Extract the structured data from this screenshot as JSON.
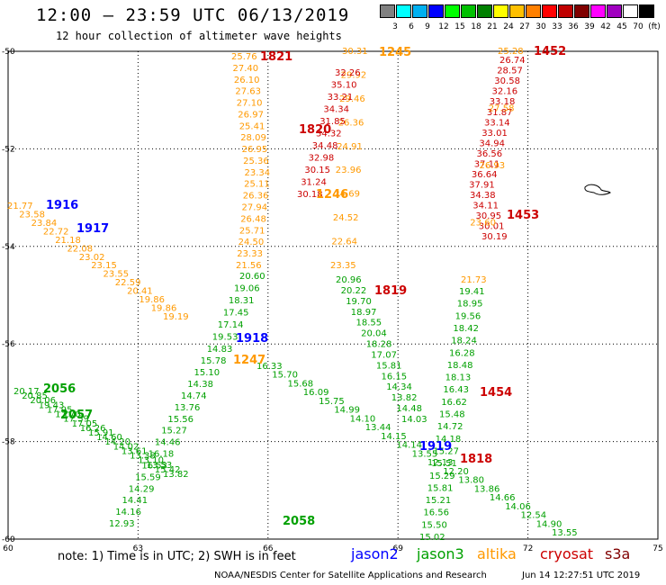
{
  "header": {
    "title": "12:00 – 23:59 UTC 06/13/2019",
    "subtitle": "12 hour collection of altimeter wave heights"
  },
  "legend": {
    "colors": [
      "#808080",
      "#00ffff",
      "#00b0f0",
      "#0000ff",
      "#00ff00",
      "#00c000",
      "#008000",
      "#ffff00",
      "#ffc000",
      "#ff8000",
      "#ff0000",
      "#c00000",
      "#800000",
      "#ff00ff",
      "#a000c0",
      "#ffffff",
      "#000000"
    ],
    "labels": [
      "3",
      "6",
      "9",
      "12",
      "15",
      "18",
      "21",
      "24",
      "27",
      "30",
      "33",
      "36",
      "39",
      "42",
      "45",
      "70",
      "(ft)"
    ]
  },
  "axes": {
    "x_ticks": [
      "60",
      "63",
      "66",
      "69",
      "72",
      "75"
    ],
    "y_ticks": [
      "-50",
      "-52",
      "-54",
      "-56",
      "-58",
      "-60"
    ]
  },
  "tracks": [
    {
      "sat": "altika",
      "labels": [
        "25.76",
        "27.40",
        "26.10",
        "27.63",
        "27.10",
        "26.97",
        "25.41",
        "28.09",
        "26.95",
        "25.36",
        "23.34",
        "25.11",
        "26.36",
        "27.94",
        "26.48",
        "25.71",
        "24.50",
        "23.33",
        "21.56"
      ]
    },
    {
      "sat": "altika",
      "labels": [
        "30.31",
        "29.92",
        "29.46",
        "26.36",
        "24.91",
        "23.96",
        "24.69",
        "24.52",
        "22.64",
        "23.35"
      ]
    },
    {
      "sat": "cryosat",
      "labels": [
        "32.26",
        "35.10",
        "33.21",
        "34.34",
        "31.85",
        "34.32",
        "34.48",
        "32.98",
        "30.15",
        "31.24",
        "30.18"
      ]
    },
    {
      "sat": "cryosat",
      "labels": [
        "26.74",
        "28.57",
        "30.58",
        "32.16",
        "33.18",
        "31.87",
        "33.14",
        "33.01",
        "34.94",
        "36.56",
        "37.11",
        "36.64",
        "37.91",
        "34.38",
        "34.11",
        "30.95",
        "30.01",
        "30.19"
      ]
    },
    {
      "sat": "altika",
      "labels": [
        "25.28",
        "27.58",
        "26.93",
        "23.60",
        "21.73"
      ]
    },
    {
      "sat": "jason3",
      "labels": [
        "20.60",
        "19.06",
        "18.31",
        "17.45",
        "17.14",
        "19.53",
        "14.83",
        "15.78",
        "15.10",
        "14.38",
        "14.74",
        "13.76",
        "15.56",
        "15.27",
        "14.46",
        "16.18",
        "16.53",
        "15.59",
        "14.29",
        "14.41",
        "14.16",
        "12.93"
      ]
    },
    {
      "sat": "jason3",
      "labels": [
        "20.96",
        "20.22",
        "19.70",
        "18.97",
        "18.55",
        "20.04",
        "18.28",
        "17.07",
        "15.81",
        "16.15",
        "14.34",
        "13.82",
        "14.48",
        "14.03"
      ]
    },
    {
      "sat": "jason3",
      "labels": [
        "19.41",
        "18.95",
        "19.56",
        "18.42",
        "18.24",
        "16.28",
        "18.48",
        "18.13",
        "16.43",
        "16.62",
        "15.48",
        "14.72",
        "14.18",
        "15.27",
        "15.51",
        "15.29",
        "15.81",
        "15.21",
        "16.56",
        "15.50",
        "15.02"
      ]
    },
    {
      "sat": "altika",
      "labels": [
        "21.77",
        "23.58",
        "23.84",
        "22.72",
        "21.18",
        "22.08",
        "23.02",
        "23.15",
        "23.55",
        "22.59",
        "20.41",
        "19.86",
        "19.86",
        "19.19"
      ]
    },
    {
      "sat": "jason3",
      "labels": [
        "16.33",
        "15.70",
        "15.68",
        "16.09",
        "15.75",
        "14.99",
        "14.10",
        "13.44",
        "14.15",
        "14.14",
        "13.55",
        "12.13",
        "12.20",
        "13.80",
        "13.86",
        "14.66",
        "14.06",
        "12.54",
        "14.90",
        "13.55"
      ]
    },
    {
      "sat": "jason3",
      "labels": [
        "20.17",
        "20.85",
        "20.06",
        "19.43",
        "17.95",
        "17.70",
        "17.59",
        "17.05",
        "16.26",
        "15.91",
        "14.60",
        "14.20",
        "14.02",
        "13.61",
        "13.38",
        "13.10",
        "13.53",
        "15.42",
        "13.82"
      ]
    }
  ],
  "time_labels": [
    {
      "text": "1821",
      "sat": "cryosat"
    },
    {
      "text": "1245",
      "sat": "altika"
    },
    {
      "text": "1452",
      "sat": "cryosat"
    },
    {
      "text": "1820",
      "sat": "cryosat"
    },
    {
      "text": "1246",
      "sat": "altika"
    },
    {
      "text": "1453",
      "sat": "cryosat"
    },
    {
      "text": "1916",
      "sat": "jason2"
    },
    {
      "text": "1917",
      "sat": "jason2"
    },
    {
      "text": "1819",
      "sat": "cryosat"
    },
    {
      "text": "1918",
      "sat": "jason2"
    },
    {
      "text": "1247",
      "sat": "altika"
    },
    {
      "text": "1454",
      "sat": "cryosat"
    },
    {
      "text": "2056",
      "sat": "jason3"
    },
    {
      "text": "2057",
      "sat": "jason3"
    },
    {
      "text": "1919",
      "sat": "jason2"
    },
    {
      "text": "1818",
      "sat": "cryosat"
    },
    {
      "text": "2058",
      "sat": "jason3"
    }
  ],
  "colors": {
    "jason2": "#0000ff",
    "jason3": "#00a000",
    "altika": "#ff9900",
    "cryosat": "#cc0000",
    "s3a": "#800000"
  },
  "footer": {
    "note": "note: 1) Time is in UTC; 2) SWH is in feet",
    "sat_jason2": "jason2",
    "sat_jason3": "jason3",
    "sat_altika": "altika",
    "sat_cryosat": "cryosat",
    "sat_s3a": "s3a",
    "credit": "NOAA/NESDIS Center for Satellite Applications and Research",
    "timestamp": "Jun 14 12:27:51 UTC 2019"
  }
}
